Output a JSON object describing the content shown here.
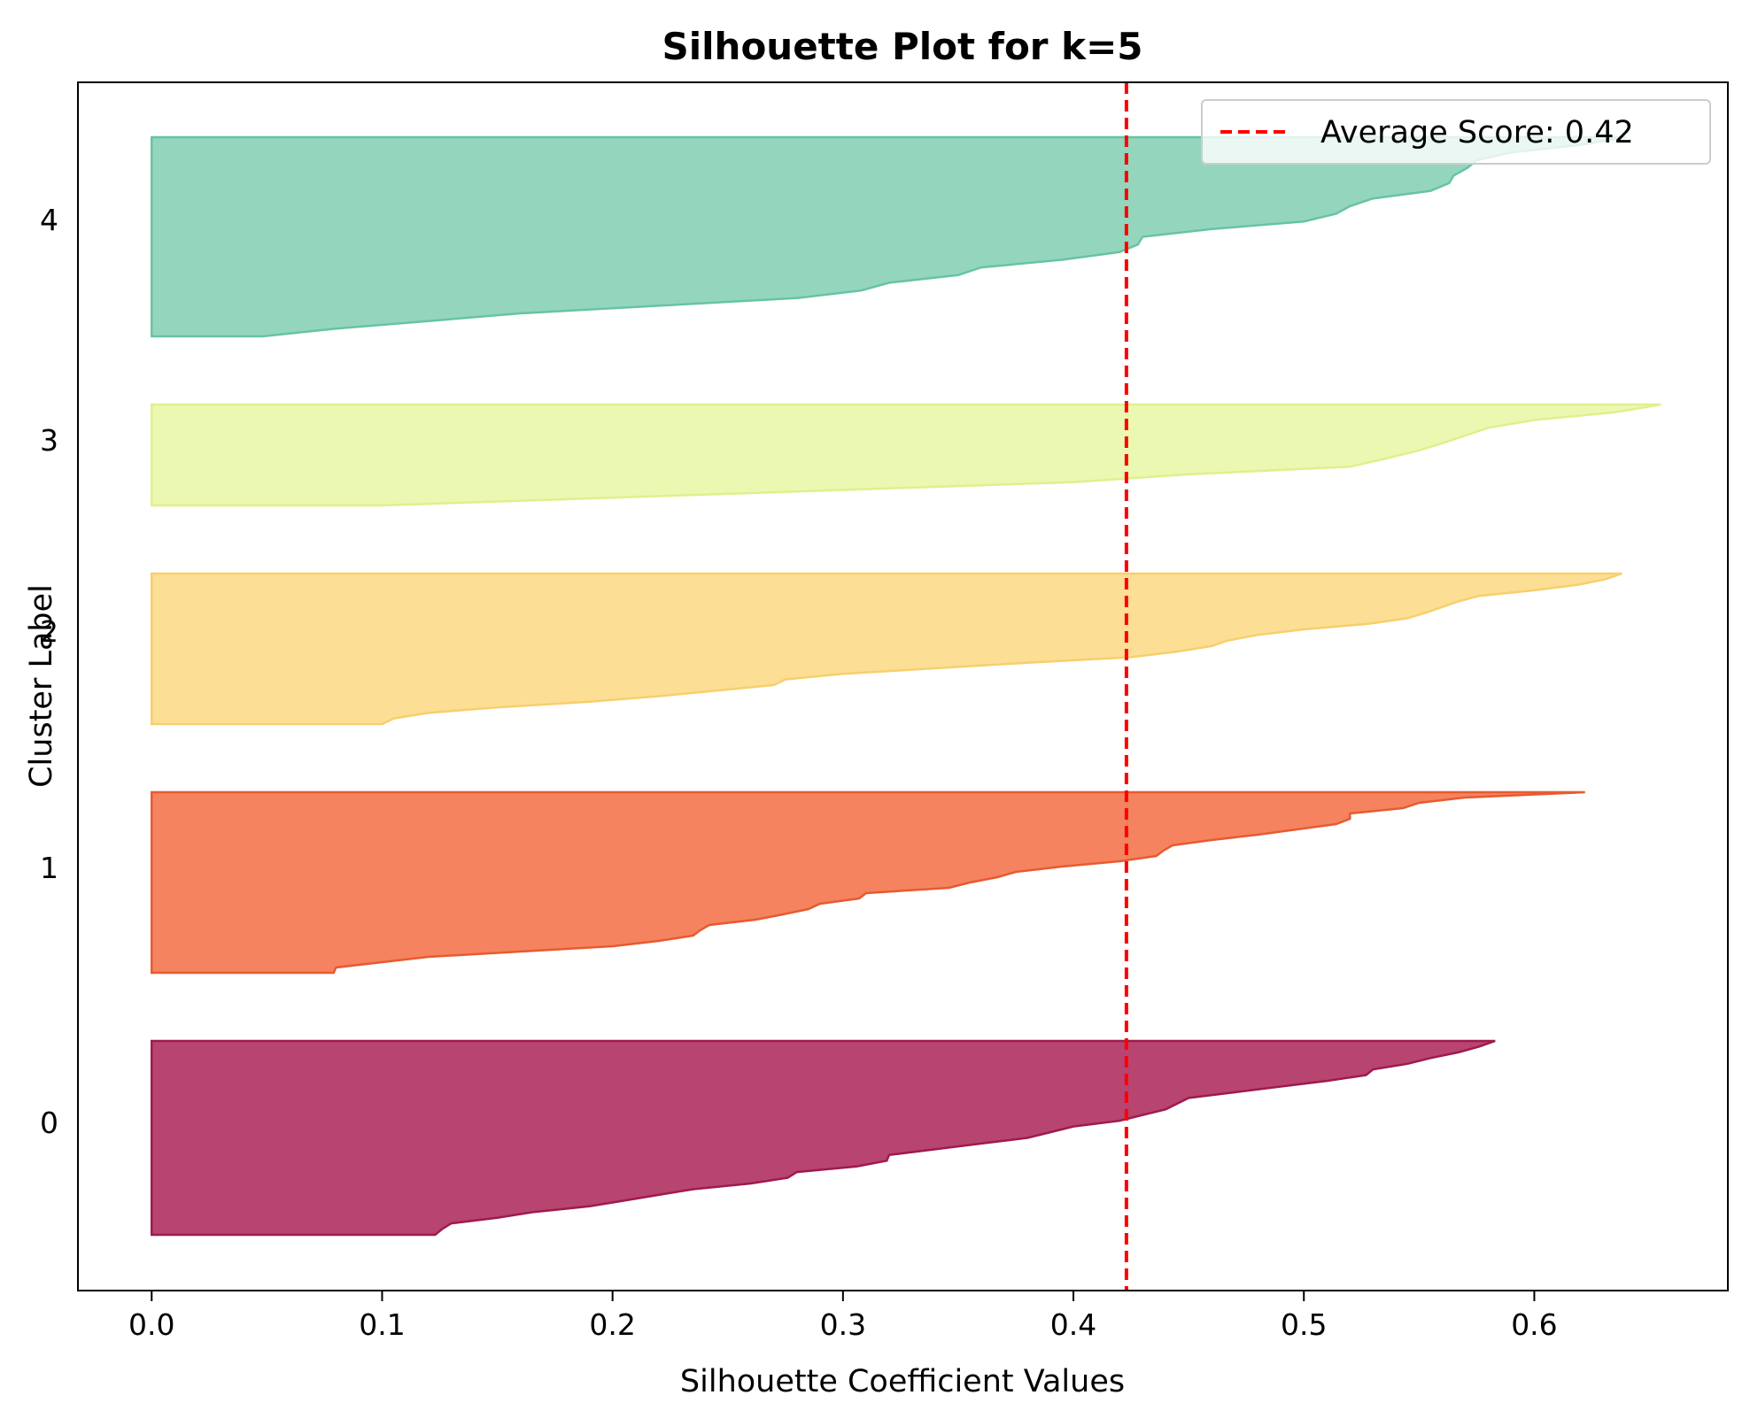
{
  "chart_data": {
    "type": "area",
    "title": "Silhouette Plot for k=5",
    "xlabel": "Silhouette Coefficient Values",
    "ylabel": "Cluster Label",
    "xlim": [
      -0.032,
      0.684
    ],
    "ylim": [
      0,
      1
    ],
    "xticks": [
      0.0,
      0.1,
      0.2,
      0.3,
      0.4,
      0.5,
      0.6
    ],
    "xtick_labels": [
      "0.0",
      "0.1",
      "0.2",
      "0.3",
      "0.4",
      "0.5",
      "0.6"
    ],
    "ytick_labels": [
      "0",
      "1",
      "2",
      "3",
      "4"
    ],
    "grid": false,
    "legend_position": "top-right",
    "average_score": 0.423,
    "average_label": "Average Score: 0.42",
    "average_color": "#ff0000",
    "series": [
      {
        "cluster": "0",
        "color": "#b03060",
        "edge": "#9e1a4f",
        "values": [
          0.583,
          0.576,
          0.567,
          0.555,
          0.545,
          0.53,
          0.527,
          0.51,
          0.49,
          0.47,
          0.45,
          0.445,
          0.44,
          0.43,
          0.42,
          0.4,
          0.39,
          0.38,
          0.36,
          0.34,
          0.32,
          0.319,
          0.306,
          0.28,
          0.276,
          0.26,
          0.235,
          0.22,
          0.205,
          0.19,
          0.166,
          0.15,
          0.13,
          0.126,
          0.123
        ]
      },
      {
        "cluster": "1",
        "color": "#f4764e",
        "edge": "#e85a30",
        "values": [
          0.622,
          0.57,
          0.55,
          0.543,
          0.52,
          0.52,
          0.514,
          0.497,
          0.48,
          0.46,
          0.443,
          0.439,
          0.436,
          0.42,
          0.395,
          0.375,
          0.367,
          0.355,
          0.346,
          0.31,
          0.307,
          0.29,
          0.285,
          0.274,
          0.262,
          0.242,
          0.238,
          0.235,
          0.22,
          0.2,
          0.16,
          0.12,
          0.1,
          0.08,
          0.079
        ]
      },
      {
        "cluster": "2",
        "color": "#fcdc8a",
        "edge": "#f7cf6c",
        "values": [
          0.638,
          0.631,
          0.619,
          0.6,
          0.576,
          0.567,
          0.56,
          0.553,
          0.545,
          0.528,
          0.5,
          0.48,
          0.467,
          0.46,
          0.445,
          0.425,
          0.38,
          0.34,
          0.3,
          0.275,
          0.27,
          0.245,
          0.22,
          0.19,
          0.15,
          0.12,
          0.105,
          0.1
        ]
      },
      {
        "cluster": "3",
        "color": "#e9f7a8",
        "edge": "#dff08d",
        "values": [
          0.655,
          0.635,
          0.6,
          0.58,
          0.57,
          0.56,
          0.549,
          0.535,
          0.52,
          0.45,
          0.4,
          0.3,
          0.2,
          0.1
        ]
      },
      {
        "cluster": "4",
        "color": "#88d2b6",
        "edge": "#67c4a1",
        "values": [
          0.64,
          0.62,
          0.59,
          0.575,
          0.571,
          0.565,
          0.563,
          0.555,
          0.53,
          0.52,
          0.514,
          0.5,
          0.46,
          0.43,
          0.428,
          0.42,
          0.395,
          0.36,
          0.35,
          0.32,
          0.308,
          0.28,
          0.22,
          0.16,
          0.12,
          0.08,
          0.048
        ]
      }
    ]
  }
}
